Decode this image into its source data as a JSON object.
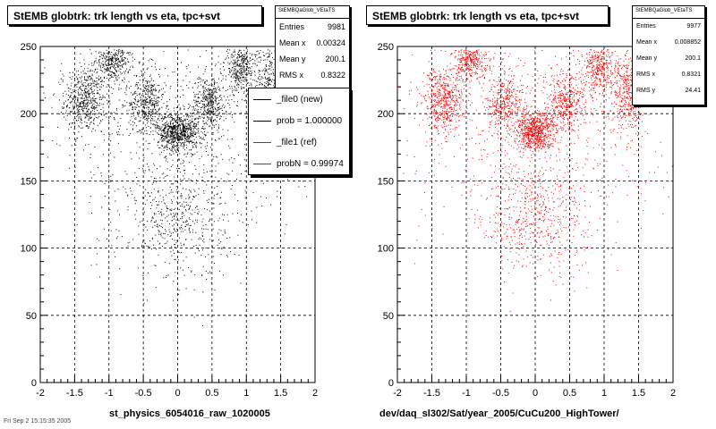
{
  "footer_text": "Fri Sep 2 15:15:35 2005",
  "chart_data": [
    {
      "type": "scatter",
      "title": "StEMB globtrk: trk length vs eta, tpc+svt",
      "xlabel": "st_physics_6054016_raw_1020005",
      "ylabel": "",
      "xlim": [
        -2,
        2
      ],
      "ylim": [
        0,
        250
      ],
      "xticks": [
        "-2",
        "-1.5",
        "-1",
        "-0.5",
        "0",
        "0.5",
        "1",
        "1.5",
        "2"
      ],
      "yticks": [
        "0",
        "50",
        "100",
        "150",
        "200",
        "250"
      ],
      "grid": true,
      "marker_color": "#000000",
      "stats": {
        "header": "StEMBQaGlob_VEtaTS",
        "entries_label": "Entries",
        "entries": "9981",
        "meanx_label": "Mean x",
        "meanx": "0.00324",
        "meany_label": "Mean y",
        "meany": "200.1",
        "rmsx_label": "RMS x",
        "rmsx": "0.8322"
      },
      "legend": {
        "entries": [
          {
            "label": "_file0 (new)",
            "color": "#000000"
          },
          {
            "label": "prob = 1.000000",
            "color": "#000000"
          },
          {
            "label": "_file1 (ref)",
            "color": "#ff0000"
          },
          {
            "label": "probN = 0.99974",
            "color": "#ff0000"
          }
        ]
      },
      "clusters": [
        {
          "x": -1.35,
          "y": 210,
          "sx": 0.15,
          "sy": 12,
          "n": 520
        },
        {
          "x": -0.95,
          "y": 240,
          "sx": 0.13,
          "sy": 8,
          "n": 380
        },
        {
          "x": -0.45,
          "y": 208,
          "sx": 0.13,
          "sy": 10,
          "n": 380
        },
        {
          "x": 0.0,
          "y": 187,
          "sx": 0.15,
          "sy": 7,
          "n": 760
        },
        {
          "x": 0.45,
          "y": 208,
          "sx": 0.13,
          "sy": 10,
          "n": 380
        },
        {
          "x": 0.92,
          "y": 235,
          "sx": 0.12,
          "sy": 10,
          "n": 380
        },
        {
          "x": 1.35,
          "y": 215,
          "sx": 0.13,
          "sy": 15,
          "n": 480
        },
        {
          "x": 0.0,
          "y": 120,
          "sx": 0.35,
          "sy": 22,
          "n": 450
        },
        {
          "x": 0.0,
          "y": 155,
          "sx": 0.9,
          "sy": 30,
          "n": 380
        },
        {
          "x": 0.0,
          "y": 220,
          "sx": 1.1,
          "sy": 25,
          "n": 380
        }
      ]
    },
    {
      "type": "scatter",
      "title": "StEMB globtrk: trk length vs eta, tpc+svt",
      "xlabel": "dev/daq_sl302/Sat/year_2005/CuCu200_HighTower/",
      "ylabel": "",
      "xlim": [
        -2,
        2
      ],
      "ylim": [
        0,
        250
      ],
      "xticks": [
        "-2",
        "-1.5",
        "-1",
        "-0.5",
        "0",
        "0.5",
        "1",
        "1.5",
        "2"
      ],
      "yticks": [
        "0",
        "50",
        "100",
        "150",
        "200",
        "250"
      ],
      "grid": true,
      "marker_color": "#ff0000",
      "stats": {
        "header": "StEMBQaGlob_VEtaTS",
        "entries_label": "Entries",
        "entries": "9977",
        "meanx_label": "Mean x",
        "meanx": "0.008852",
        "meany_label": "Mean y",
        "meany": "200.1",
        "rmsx_label": "RMS x",
        "rmsx": "0.8321",
        "rmsy_label": "RMS y",
        "rmsy": "24.41"
      },
      "clusters": [
        {
          "x": -1.35,
          "y": 210,
          "sx": 0.15,
          "sy": 12,
          "n": 520
        },
        {
          "x": -0.95,
          "y": 240,
          "sx": 0.13,
          "sy": 8,
          "n": 380
        },
        {
          "x": -0.45,
          "y": 208,
          "sx": 0.13,
          "sy": 10,
          "n": 380
        },
        {
          "x": 0.0,
          "y": 187,
          "sx": 0.15,
          "sy": 7,
          "n": 760
        },
        {
          "x": 0.45,
          "y": 208,
          "sx": 0.13,
          "sy": 10,
          "n": 380
        },
        {
          "x": 0.92,
          "y": 235,
          "sx": 0.12,
          "sy": 10,
          "n": 380
        },
        {
          "x": 1.35,
          "y": 215,
          "sx": 0.13,
          "sy": 15,
          "n": 480
        },
        {
          "x": 0.0,
          "y": 120,
          "sx": 0.35,
          "sy": 22,
          "n": 450
        },
        {
          "x": 0.0,
          "y": 155,
          "sx": 0.9,
          "sy": 30,
          "n": 380
        },
        {
          "x": 0.0,
          "y": 220,
          "sx": 1.1,
          "sy": 25,
          "n": 380
        }
      ]
    }
  ]
}
